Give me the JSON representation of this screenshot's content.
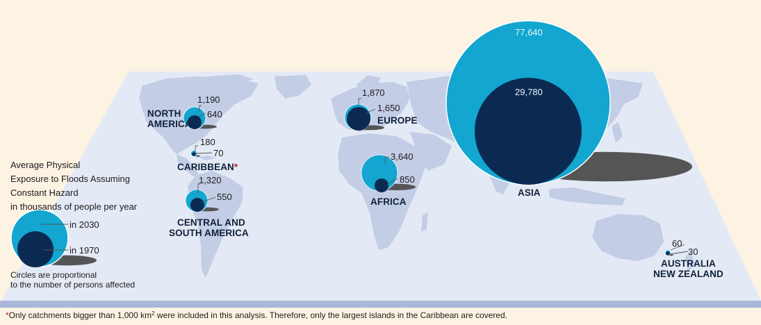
{
  "legend": {
    "title_lines": [
      "Average Physical",
      "Exposure to Floods Assuming",
      "Constant Hazard",
      "in thousands of people per year"
    ],
    "label_2030": "in 2030",
    "label_1970": "in 1970",
    "note_lines": [
      "Circles are proportional",
      "to the number of persons affected"
    ]
  },
  "colors": {
    "circle_2030": "#12a6d0",
    "circle_1970": "#0b2a52",
    "land": "#c3cde6",
    "ocean": "#e4eaf5",
    "background": "#fdf3e3",
    "footnote_star": "#d0102a"
  },
  "regions": [
    {
      "id": "north-america",
      "name_lines": [
        "NORTH",
        "AMERICA"
      ],
      "value_2030": "1,190",
      "value_1970": "640"
    },
    {
      "id": "caribbean",
      "name_lines": [
        "CARIBBEAN"
      ],
      "marker": "*",
      "value_2030": "180",
      "value_1970": "70"
    },
    {
      "id": "central-south-america",
      "name_lines": [
        "CENTRAL AND",
        "SOUTH AMERICA"
      ],
      "value_2030": "1,320",
      "value_1970": "550"
    },
    {
      "id": "europe",
      "name_lines": [
        "EUROPE"
      ],
      "value_2030": "1,870",
      "value_1970": "1,650"
    },
    {
      "id": "africa",
      "name_lines": [
        "AFRICA"
      ],
      "value_2030": "3,640",
      "value_1970": "850"
    },
    {
      "id": "asia",
      "name_lines": [
        "ASIA"
      ],
      "value_2030": "77,640",
      "value_1970": "29,780"
    },
    {
      "id": "australia-nz",
      "name_lines": [
        "AUSTRALIA",
        "NEW ZEALAND"
      ],
      "value_2030": "60",
      "value_1970": "30"
    }
  ],
  "footnote": {
    "marker": "*",
    "text_before": "Only catchments bigger than 1,000 km",
    "superscript": "2",
    "text_after": " were included in this analysis. Therefore, only the largest islands in the Caribbean are covered."
  }
}
